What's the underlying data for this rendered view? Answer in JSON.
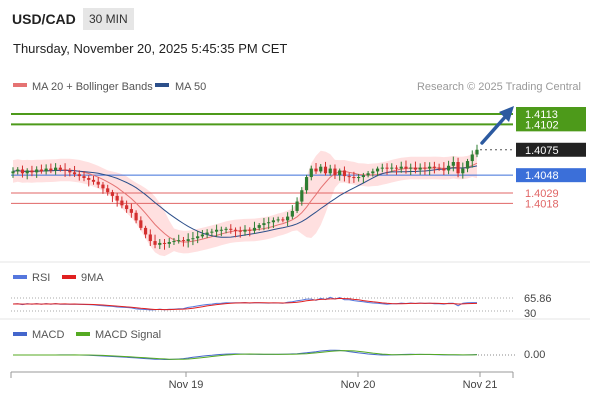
{
  "header": {
    "symbol": "USD/CAD",
    "timeframe": "30 MIN",
    "datetime": "Thursday, November 20, 2025 5:45:35 PM CET",
    "source": "Research © 2025 Trading Central"
  },
  "legend": {
    "ma20": "MA 20 + Bollinger Bands",
    "ma50": "MA 50",
    "rsi": "RSI",
    "rsi_ma": "9MA",
    "macd": "MACD",
    "macd_signal": "MACD Signal"
  },
  "colors": {
    "bull": "#2e7d32",
    "bear": "#d32f2f",
    "ma20": "#e57373",
    "ma50": "#2c4f8a",
    "band": "#ffd6d6",
    "target_line": "#4d9a1a",
    "pivot_line": "#3b6fd9",
    "support_line": "#e06666",
    "arrow": "#2c5aa0",
    "rsi": "#5577dd",
    "rsi_ma": "#e02020",
    "macd": "#4466cc",
    "macd_signal": "#55aa22"
  },
  "chart_data": {
    "type": "candlestick",
    "x_ticks": [
      "Nov 19",
      "Nov 20",
      "Nov 21"
    ],
    "ylim": [
      1.396,
      1.413
    ],
    "levels": [
      {
        "value": 1.4113,
        "label": "1.4113",
        "kind": "target"
      },
      {
        "value": 1.4102,
        "label": "1.4102",
        "kind": "target"
      },
      {
        "value": 1.4075,
        "label": "1.4075",
        "kind": "last"
      },
      {
        "value": 1.4048,
        "label": "1.4048",
        "kind": "pivot"
      },
      {
        "value": 1.4029,
        "label": "1.4029",
        "kind": "support"
      },
      {
        "value": 1.4018,
        "label": "1.4018",
        "kind": "support"
      }
    ],
    "ohlc_close": [
      1.4052,
      1.4054,
      1.405,
      1.4053,
      1.4051,
      1.4054,
      1.4052,
      1.4055,
      1.4053,
      1.4056,
      1.4054,
      1.4053,
      1.4051,
      1.4049,
      1.4047,
      1.4045,
      1.4043,
      1.4041,
      1.4038,
      1.4034,
      1.403,
      1.4026,
      1.4021,
      1.4016,
      1.4012,
      1.4008,
      1.4,
      1.3992,
      1.3985,
      1.3978,
      1.3974,
      1.3976,
      1.3975,
      1.3977,
      1.3978,
      1.3979,
      1.3978,
      1.398,
      1.3981,
      1.3983,
      1.3985,
      1.3987,
      1.3988,
      1.399,
      1.399,
      1.3991,
      1.399,
      1.3989,
      1.3988,
      1.399,
      1.3989,
      1.3992,
      1.3995,
      1.3997,
      1.3998,
      1.4,
      1.4001,
      1.4,
      1.4004,
      1.401,
      1.402,
      1.4032,
      1.4046,
      1.4055,
      1.4052,
      1.4057,
      1.405,
      1.4055,
      1.4048,
      1.4053,
      1.4047,
      1.4046,
      1.4045,
      1.4046,
      1.4048,
      1.405,
      1.4052,
      1.4055,
      1.4056,
      1.4055,
      1.4056,
      1.4055,
      1.4057,
      1.4055,
      1.4056,
      1.4054,
      1.4056,
      1.4055,
      1.4057,
      1.4056,
      1.4055,
      1.4053,
      1.4058,
      1.4062,
      1.405,
      1.4055,
      1.4063,
      1.407,
      1.4075
    ],
    "rsi": {
      "value": 65.86,
      "label": "65.86",
      "level_label": "30"
    },
    "macd": {
      "value": 0.0,
      "label": "0.00"
    }
  }
}
